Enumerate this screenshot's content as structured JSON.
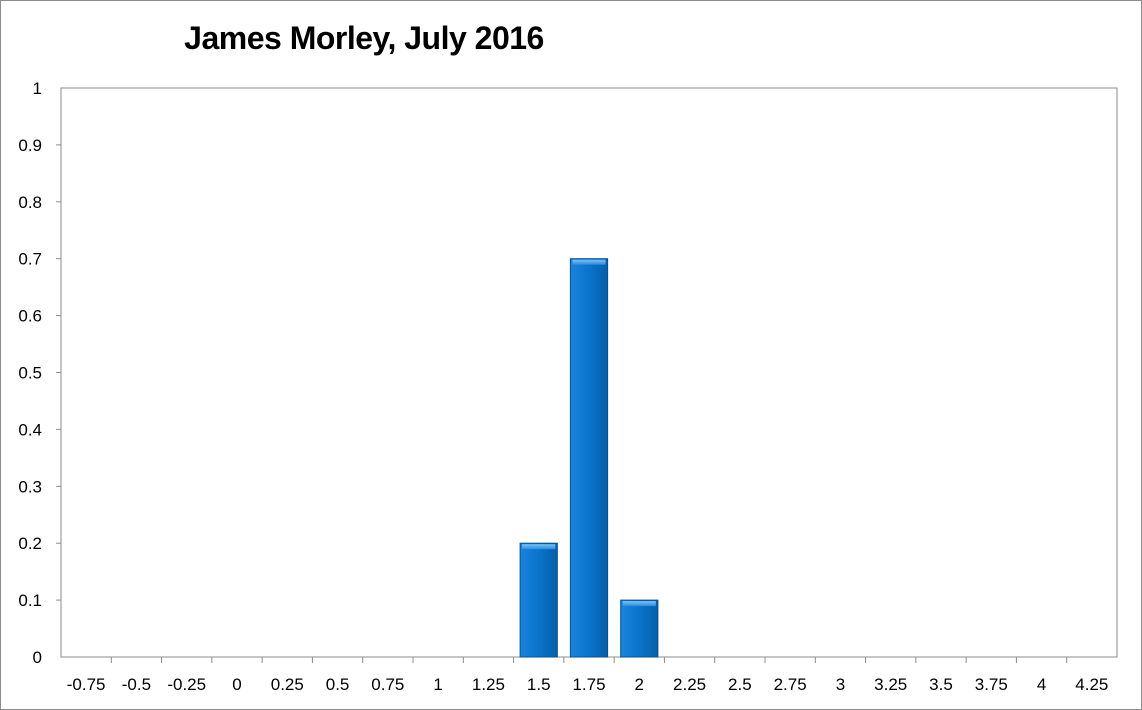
{
  "chart_data": {
    "type": "bar",
    "title": "James Morley, July 2016",
    "categories": [
      "-0.75",
      "-0.5",
      "-0.25",
      "0",
      "0.25",
      "0.5",
      "0.75",
      "1",
      "1.25",
      "1.5",
      "1.75",
      "2",
      "2.25",
      "2.5",
      "2.75",
      "3",
      "3.25",
      "3.5",
      "3.75",
      "4",
      "4.25"
    ],
    "values": [
      0,
      0,
      0,
      0,
      0,
      0,
      0,
      0,
      0,
      0.2,
      0.7,
      0.1,
      0,
      0,
      0,
      0,
      0,
      0,
      0,
      0,
      0
    ],
    "ylim": [
      0,
      1
    ],
    "yticks": [
      "0",
      "0.1",
      "0.2",
      "0.3",
      "0.4",
      "0.5",
      "0.6",
      "0.7",
      "0.8",
      "0.9",
      "1"
    ],
    "xlabel": "",
    "ylabel": "",
    "grid": false,
    "legend": "none",
    "bar_color": "#0a74cc"
  }
}
